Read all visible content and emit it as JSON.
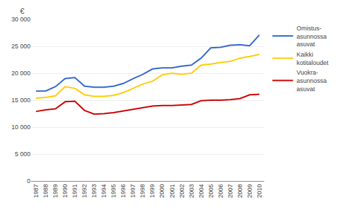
{
  "chart_data": {
    "type": "line",
    "ylabel": "€",
    "x": [
      1987,
      1988,
      1989,
      1990,
      1991,
      1992,
      1993,
      1994,
      1995,
      1996,
      1997,
      1998,
      1999,
      2000,
      2001,
      2002,
      2003,
      2004,
      2005,
      2006,
      2007,
      2008,
      2009,
      2010
    ],
    "series": [
      {
        "name": "Omistus-\nasunnossa\nasuvat",
        "color": "#3366CC",
        "values": [
          16700,
          16700,
          17500,
          19000,
          19200,
          17600,
          17400,
          17400,
          17600,
          18100,
          19000,
          19800,
          20800,
          21000,
          21000,
          21300,
          21500,
          22800,
          24700,
          24800,
          25200,
          25300,
          25100,
          27100
        ]
      },
      {
        "name": "Kaikki\nkotitaloudet",
        "color": "#FFCC00",
        "values": [
          15400,
          15500,
          15800,
          17500,
          17200,
          16000,
          15700,
          15700,
          15900,
          16400,
          17200,
          18000,
          18500,
          19700,
          20000,
          19800,
          20000,
          21500,
          21700,
          22000,
          22200,
          22800,
          23100,
          23500
        ]
      },
      {
        "name": "Vuokra-\nasunnossa\nasuvat",
        "color": "#CC0000",
        "values": [
          12900,
          13200,
          13400,
          14700,
          14800,
          13100,
          12400,
          12500,
          12700,
          13000,
          13300,
          13600,
          13900,
          14000,
          14000,
          14100,
          14200,
          14900,
          15000,
          15000,
          15100,
          15300,
          16000,
          16100
        ]
      }
    ],
    "xlim": [
      1986.5,
      2010.5
    ],
    "xticks": [
      1987,
      1988,
      1989,
      1990,
      1991,
      1992,
      1993,
      1994,
      1995,
      1996,
      1997,
      1998,
      1999,
      2000,
      2001,
      2002,
      2003,
      2004,
      2005,
      2006,
      2007,
      2008,
      2009,
      2010
    ],
    "ylim": [
      0,
      30000
    ],
    "yticks": [
      0,
      {
        "value": 5000,
        "label": "5 000"
      },
      {
        "value": 10000,
        "label": "10 000"
      },
      {
        "value": 15000,
        "label": "15 000"
      },
      {
        "value": 20000,
        "label": "20 000"
      },
      {
        "value": 25000,
        "label": "25 000"
      },
      {
        "value": 30000,
        "label": "30 000"
      }
    ],
    "grid": true,
    "legend": "right"
  }
}
